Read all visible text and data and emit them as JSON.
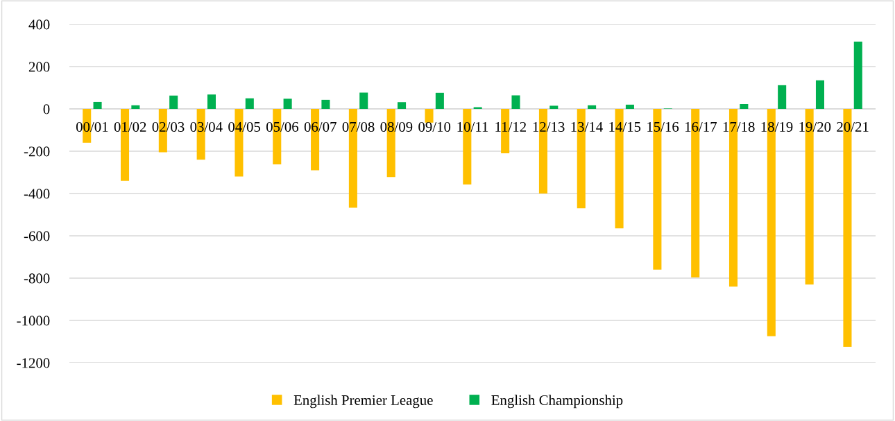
{
  "chart_data": {
    "type": "bar",
    "categories": [
      "00/01",
      "01/02",
      "02/03",
      "03/04",
      "04/05",
      "05/06",
      "06/07",
      "07/08",
      "08/09",
      "09/10",
      "10/11",
      "11/12",
      "12/13",
      "13/14",
      "14/15",
      "15/16",
      "16/17",
      "17/18",
      "18/19",
      "19/20",
      "20/21"
    ],
    "series": [
      {
        "name": "English Premier League",
        "color": "#ffc000",
        "values": [
          -160,
          -340,
          -205,
          -240,
          -320,
          -262,
          -290,
          -467,
          -322,
          -65,
          -357,
          -210,
          -400,
          -470,
          -565,
          -760,
          -797,
          -840,
          -1075,
          -830,
          -1125
        ]
      },
      {
        "name": "English Championship",
        "color": "#00b050",
        "values": [
          33,
          17,
          63,
          68,
          50,
          48,
          43,
          77,
          32,
          76,
          8,
          64,
          15,
          17,
          20,
          2,
          0,
          23,
          112,
          135,
          318
        ]
      }
    ],
    "ylim": [
      -1200,
      400
    ],
    "yticks": [
      -1200,
      -1000,
      -800,
      -600,
      -400,
      -200,
      0,
      200,
      400
    ],
    "grid": "y",
    "legend": "bottom"
  }
}
